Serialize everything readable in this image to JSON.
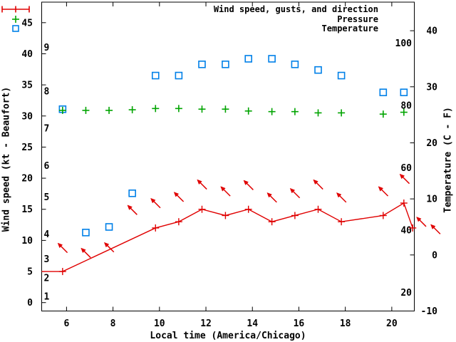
{
  "chart_data": {
    "type": "line",
    "title": "",
    "xlabel": "Local time (America/Chicago)",
    "ylabel": "Wind speed (kt - Beaufort)",
    "y2label": "Temperature (C - F)",
    "legend_position": "top-right-inside",
    "grid": false,
    "colors": {
      "wind": "#e00000",
      "pressure": "#00a400",
      "temperature": "#0080e8",
      "axis": "#000000",
      "background": "#ffffff"
    },
    "legend": [
      {
        "label": "Wind speed, gusts, and direction",
        "series": "wind",
        "symbol": "errorbar-plus",
        "color": "#e00000"
      },
      {
        "label": "Pressure",
        "series": "pressure",
        "symbol": "plus",
        "color": "#00a400"
      },
      {
        "label": "Temperature",
        "series": "temperature",
        "symbol": "open-square",
        "color": "#0080e8"
      }
    ],
    "axes": {
      "x": {
        "label": "Local time (America/Chicago)",
        "range": [
          4.93,
          20.97
        ],
        "ticks": [
          6,
          8,
          10,
          12,
          14,
          16,
          18,
          20
        ]
      },
      "wind": {
        "label": "Wind speed (kt - Beaufort)",
        "range": [
          -1.35,
          48.3
        ],
        "ticks": [
          0,
          5,
          10,
          15,
          20,
          25,
          30,
          35,
          40,
          45
        ]
      },
      "temp_c": {
        "label": "Temperature (C)",
        "range": [
          -10,
          45.1
        ],
        "ticks": [
          -10,
          0,
          10,
          20,
          30,
          40
        ]
      },
      "beaufort_inside_labels": [
        {
          "label": "1",
          "kt": 1
        },
        {
          "label": "2",
          "kt": 4
        },
        {
          "label": "3",
          "kt": 7
        },
        {
          "label": "4",
          "kt": 11
        },
        {
          "label": "5",
          "kt": 17
        },
        {
          "label": "6",
          "kt": 22
        },
        {
          "label": "7",
          "kt": 28
        },
        {
          "label": "8",
          "kt": 34
        },
        {
          "label": "9",
          "kt": 41
        }
      ],
      "fahrenheit_inside_labels": [
        20,
        40,
        60,
        80,
        100
      ]
    },
    "series": {
      "wind_speed_line_kt": {
        "points": [
          [
            4.93,
            5
          ],
          [
            5.83,
            5
          ],
          [
            9.83,
            12
          ],
          [
            10.83,
            13
          ],
          [
            11.83,
            15
          ],
          [
            12.84,
            14
          ],
          [
            13.83,
            15
          ],
          [
            14.84,
            13
          ],
          [
            15.83,
            14
          ],
          [
            16.83,
            15
          ],
          [
            17.83,
            13
          ],
          [
            19.63,
            14
          ],
          [
            20.52,
            16
          ],
          [
            20.9,
            12
          ]
        ],
        "marker_from_index": 1
      },
      "gust_direction_arrows_kt": {
        "note": "arrows point toward upper-left (wind from NE), centered at [hour, kt]",
        "points": [
          [
            5.83,
            8.8
          ],
          [
            6.83,
            8.0
          ],
          [
            7.83,
            8.9
          ],
          [
            8.83,
            14.9
          ],
          [
            9.83,
            16.0
          ],
          [
            10.83,
            17.0
          ],
          [
            11.83,
            19.0
          ],
          [
            12.84,
            17.9
          ],
          [
            13.83,
            18.9
          ],
          [
            14.84,
            16.9
          ],
          [
            15.83,
            17.6
          ],
          [
            16.83,
            19.0
          ],
          [
            17.83,
            16.9
          ],
          [
            19.63,
            17.9
          ],
          [
            20.55,
            19.9
          ],
          [
            21.27,
            13.0
          ],
          [
            21.88,
            11.8
          ]
        ]
      },
      "pressure_on_wind_scale": {
        "points": [
          [
            5.83,
            30.9
          ],
          [
            6.83,
            30.9
          ],
          [
            7.83,
            30.9
          ],
          [
            8.83,
            31.0
          ],
          [
            9.83,
            31.2
          ],
          [
            10.83,
            31.2
          ],
          [
            11.83,
            31.1
          ],
          [
            12.84,
            31.1
          ],
          [
            13.83,
            30.8
          ],
          [
            14.84,
            30.7
          ],
          [
            15.83,
            30.7
          ],
          [
            16.83,
            30.5
          ],
          [
            17.83,
            30.5
          ],
          [
            19.63,
            30.3
          ],
          [
            20.52,
            30.6
          ]
        ]
      },
      "temperature_c": {
        "points": [
          [
            5.83,
            26
          ],
          [
            6.83,
            4
          ],
          [
            7.83,
            5
          ],
          [
            8.83,
            11
          ],
          [
            9.83,
            32
          ],
          [
            10.83,
            32
          ],
          [
            11.83,
            34
          ],
          [
            12.84,
            34
          ],
          [
            13.83,
            35
          ],
          [
            14.84,
            35
          ],
          [
            15.83,
            34
          ],
          [
            16.83,
            33
          ],
          [
            17.83,
            32
          ],
          [
            19.63,
            29
          ],
          [
            20.52,
            29
          ]
        ]
      }
    }
  }
}
